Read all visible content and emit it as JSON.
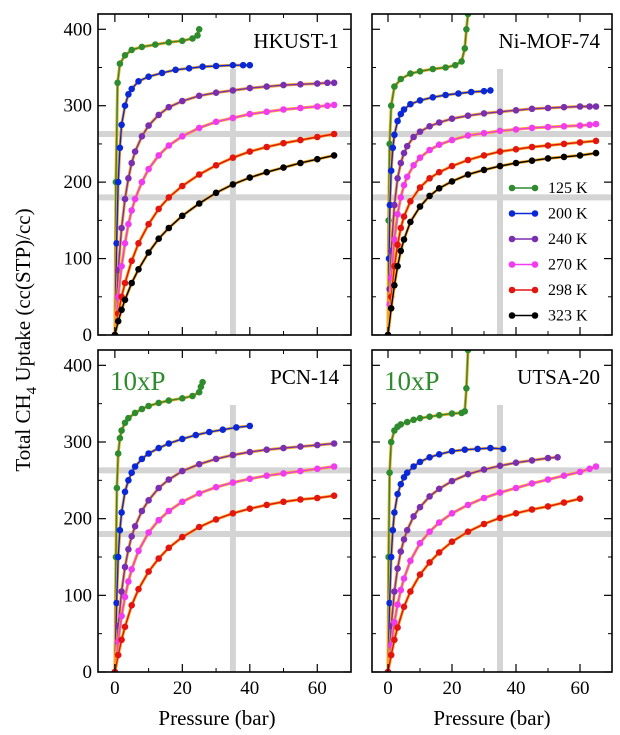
{
  "figure": {
    "ylabel_prefix": "Total CH",
    "ylabel_sub": "4",
    "ylabel_suffix": " Uptake (cc(STP)/cc)",
    "xlabel": "Pressure (bar)"
  },
  "colors": {
    "125 K": "#2e8b2e",
    "200 K": "#0a28d8",
    "240 K": "#7a2fb0",
    "270 K": "#f23af0",
    "298 K": "#e3150f",
    "323 K": "#000000",
    "fit": "#f5a623",
    "reference": "#d4d4d4"
  },
  "legend": [
    "125 K",
    "200 K",
    "240 K",
    "270 K",
    "298 K",
    "323 K"
  ],
  "chart_data": [
    {
      "type": "line",
      "panel": "HKUST-1",
      "multiplier": "",
      "xlim": [
        -5,
        70
      ],
      "ylim": [
        0,
        420
      ],
      "xticks": [
        0,
        20,
        40,
        60
      ],
      "yticks": [
        0,
        100,
        200,
        300,
        400
      ],
      "xticklabels": [
        "",
        "",
        "",
        ""
      ],
      "yticklabels": [
        "0",
        "100",
        "200",
        "300",
        "400"
      ],
      "reference_lines": {
        "x": 35,
        "y": [
          180,
          263
        ]
      },
      "series": [
        {
          "name": "125 K",
          "x": [
            0,
            0.3,
            0.8,
            1.5,
            3,
            5,
            8,
            12,
            16,
            20,
            23,
            24.5,
            25
          ],
          "y": [
            0,
            200,
            330,
            355,
            366,
            373,
            377,
            380,
            383,
            385,
            388,
            392,
            400
          ]
        },
        {
          "name": "200 K",
          "x": [
            0,
            0.5,
            1,
            1.5,
            2,
            3,
            4,
            5,
            7,
            10,
            14,
            18,
            22,
            26,
            30,
            35,
            38,
            40
          ],
          "y": [
            0,
            120,
            200,
            245,
            275,
            300,
            315,
            322,
            332,
            338,
            343,
            347,
            349,
            351,
            352,
            353,
            353,
            353
          ]
        },
        {
          "name": "240 K",
          "x": [
            0,
            1,
            2,
            3,
            4,
            5,
            6,
            8,
            10,
            13,
            16,
            20,
            25,
            30,
            35,
            40,
            45,
            50,
            55,
            60,
            63,
            65
          ],
          "y": [
            0,
            85,
            140,
            178,
            205,
            225,
            240,
            260,
            274,
            288,
            298,
            306,
            313,
            317,
            320,
            323,
            325,
            327,
            328,
            329,
            330,
            330
          ]
        },
        {
          "name": "270 K",
          "x": [
            0,
            1,
            2,
            3,
            4,
            5,
            6,
            8,
            10,
            13,
            16,
            20,
            25,
            30,
            35,
            40,
            45,
            50,
            55,
            60,
            63,
            65
          ],
          "y": [
            0,
            50,
            90,
            120,
            145,
            163,
            178,
            200,
            217,
            235,
            248,
            260,
            271,
            279,
            284,
            289,
            292,
            295,
            297,
            299,
            300,
            301
          ]
        },
        {
          "name": "298 K",
          "x": [
            0,
            1,
            2,
            3,
            5,
            7,
            10,
            13,
            16,
            20,
            25,
            30,
            35,
            40,
            45,
            50,
            55,
            60,
            65
          ],
          "y": [
            0,
            28,
            50,
            68,
            97,
            120,
            145,
            165,
            180,
            195,
            210,
            222,
            232,
            240,
            246,
            251,
            255,
            259,
            263
          ]
        },
        {
          "name": "323 K",
          "x": [
            0,
            1,
            2,
            3,
            5,
            7,
            10,
            13,
            16,
            20,
            25,
            30,
            35,
            40,
            45,
            50,
            55,
            60,
            65
          ],
          "y": [
            0,
            18,
            33,
            46,
            68,
            86,
            108,
            126,
            140,
            156,
            172,
            186,
            197,
            206,
            213,
            219,
            225,
            230,
            235
          ]
        }
      ]
    },
    {
      "type": "line",
      "panel": "Ni-MOF-74",
      "multiplier": "",
      "xlim": [
        -5,
        70
      ],
      "ylim": [
        0,
        420
      ],
      "xticks": [
        0,
        20,
        40,
        60
      ],
      "yticks": [
        0,
        100,
        200,
        300,
        400
      ],
      "xticklabels": [
        "",
        "",
        "",
        ""
      ],
      "yticklabels": [
        "",
        "",
        "",
        "",
        ""
      ],
      "reference_lines": {
        "x": 35,
        "y": [
          180,
          263
        ]
      },
      "series": [
        {
          "name": "125 K",
          "x": [
            0,
            0.2,
            0.5,
            1,
            2,
            4,
            7,
            10,
            14,
            18,
            21,
            23,
            24,
            24.5,
            25
          ],
          "y": [
            0,
            150,
            250,
            300,
            325,
            335,
            342,
            345,
            348,
            350,
            353,
            358,
            375,
            400,
            420
          ]
        },
        {
          "name": "200 K",
          "x": [
            0,
            0.3,
            0.6,
            1,
            1.5,
            2,
            3,
            4,
            5,
            7,
            10,
            14,
            18,
            22,
            26,
            30,
            32
          ],
          "y": [
            0,
            100,
            170,
            215,
            245,
            262,
            280,
            289,
            295,
            302,
            307,
            311,
            314,
            316,
            318,
            319,
            320
          ]
        },
        {
          "name": "240 K",
          "x": [
            0,
            0.5,
            1,
            2,
            3,
            4,
            5,
            6,
            8,
            10,
            13,
            16,
            20,
            25,
            30,
            35,
            40,
            45,
            50,
            55,
            60,
            63,
            65
          ],
          "y": [
            0,
            60,
            110,
            170,
            205,
            225,
            238,
            247,
            259,
            266,
            273,
            278,
            283,
            287,
            290,
            292,
            294,
            296,
            297,
            298,
            299,
            299,
            299
          ]
        },
        {
          "name": "270 K",
          "x": [
            0,
            0.5,
            1,
            2,
            3,
            4,
            5,
            6,
            8,
            10,
            13,
            16,
            20,
            25,
            30,
            35,
            40,
            45,
            50,
            55,
            60,
            63,
            65
          ],
          "y": [
            0,
            40,
            75,
            125,
            158,
            180,
            196,
            207,
            222,
            232,
            242,
            249,
            255,
            261,
            264,
            267,
            269,
            271,
            272,
            273,
            274,
            275,
            276
          ]
        },
        {
          "name": "298 K",
          "x": [
            0,
            1,
            2,
            3,
            4,
            5,
            7,
            10,
            13,
            16,
            20,
            25,
            30,
            35,
            40,
            45,
            50,
            55,
            60,
            65
          ],
          "y": [
            0,
            50,
            90,
            118,
            140,
            155,
            175,
            193,
            205,
            213,
            221,
            229,
            235,
            240,
            243,
            246,
            248,
            250,
            252,
            254
          ]
        },
        {
          "name": "323 K",
          "x": [
            0,
            1,
            2,
            3,
            4,
            5,
            7,
            10,
            13,
            16,
            20,
            25,
            30,
            35,
            40,
            45,
            50,
            55,
            60,
            65
          ],
          "y": [
            0,
            35,
            65,
            90,
            110,
            125,
            148,
            168,
            182,
            192,
            201,
            210,
            216,
            221,
            225,
            228,
            231,
            233,
            235,
            238
          ]
        }
      ]
    },
    {
      "type": "line",
      "panel": "PCN-14",
      "multiplier": "10xP",
      "xlim": [
        -5,
        70
      ],
      "ylim": [
        0,
        420
      ],
      "xticks": [
        0,
        20,
        40,
        60
      ],
      "yticks": [
        0,
        100,
        200,
        300,
        400
      ],
      "xticklabels": [
        "0",
        "20",
        "40",
        "60"
      ],
      "yticklabels": [
        "0",
        "100",
        "200",
        "300",
        "400"
      ],
      "reference_lines": {
        "x": 35,
        "y": [
          180,
          263
        ]
      },
      "series": [
        {
          "name": "125 K",
          "x": [
            0,
            0.3,
            0.6,
            1,
            1.5,
            2,
            3,
            4,
            6,
            8,
            10,
            13,
            16,
            20,
            23,
            25,
            25.5,
            26
          ],
          "y": [
            0,
            150,
            240,
            285,
            305,
            315,
            325,
            331,
            338,
            343,
            347,
            351,
            354,
            357,
            360,
            365,
            372,
            378
          ]
        },
        {
          "name": "200 K",
          "x": [
            0,
            0.5,
            1,
            1.5,
            2,
            3,
            4,
            5,
            6,
            8,
            10,
            13,
            16,
            20,
            24,
            28,
            32,
            36,
            40
          ],
          "y": [
            0,
            90,
            150,
            185,
            208,
            235,
            250,
            260,
            268,
            278,
            285,
            292,
            298,
            304,
            309,
            313,
            316,
            319,
            321
          ]
        },
        {
          "name": "240 K",
          "x": [
            0,
            1,
            2,
            3,
            4,
            5,
            6,
            8,
            10,
            13,
            16,
            20,
            25,
            30,
            35,
            40,
            45,
            50,
            55,
            60,
            65
          ],
          "y": [
            0,
            60,
            105,
            137,
            160,
            177,
            190,
            210,
            224,
            240,
            251,
            262,
            271,
            278,
            283,
            287,
            290,
            292,
            294,
            296,
            298
          ]
        },
        {
          "name": "270 K",
          "x": [
            0,
            1,
            2,
            3,
            4,
            5,
            7,
            10,
            13,
            16,
            20,
            25,
            30,
            35,
            40,
            45,
            50,
            55,
            60,
            65
          ],
          "y": [
            0,
            40,
            73,
            98,
            118,
            134,
            158,
            182,
            198,
            210,
            222,
            233,
            241,
            247,
            252,
            256,
            259,
            262,
            265,
            268
          ]
        },
        {
          "name": "298 K",
          "x": [
            0,
            1,
            2,
            3,
            5,
            7,
            10,
            13,
            16,
            20,
            25,
            30,
            35,
            40,
            45,
            50,
            55,
            60,
            65
          ],
          "y": [
            0,
            22,
            42,
            59,
            87,
            108,
            131,
            148,
            162,
            176,
            189,
            199,
            207,
            213,
            218,
            222,
            225,
            227,
            230
          ]
        }
      ]
    },
    {
      "type": "line",
      "panel": "UTSA-20",
      "multiplier": "10xP",
      "xlim": [
        -5,
        70
      ],
      "ylim": [
        0,
        420
      ],
      "xticks": [
        0,
        20,
        40,
        60
      ],
      "yticks": [
        0,
        100,
        200,
        300,
        400
      ],
      "xticklabels": [
        "0",
        "20",
        "40",
        "60"
      ],
      "yticklabels": [
        "",
        "",
        "",
        "",
        ""
      ],
      "reference_lines": {
        "x": 35,
        "y": [
          180,
          263
        ]
      },
      "series": [
        {
          "name": "125 K",
          "x": [
            0,
            0.2,
            0.5,
            1,
            2,
            3,
            4,
            6,
            8,
            10,
            13,
            16,
            20,
            23,
            24,
            24.5,
            25
          ],
          "y": [
            0,
            150,
            260,
            300,
            315,
            320,
            323,
            326,
            329,
            331,
            333,
            335,
            337,
            338,
            340,
            370,
            420
          ]
        },
        {
          "name": "200 K",
          "x": [
            0,
            0.5,
            1,
            1.5,
            2,
            3,
            4,
            5,
            6,
            8,
            10,
            13,
            16,
            20,
            24,
            28,
            32,
            36
          ],
          "y": [
            0,
            90,
            150,
            185,
            208,
            232,
            245,
            254,
            260,
            268,
            274,
            280,
            284,
            288,
            290,
            291,
            292,
            291
          ]
        },
        {
          "name": "240 K",
          "x": [
            0,
            1,
            2,
            3,
            4,
            5,
            6,
            8,
            10,
            13,
            16,
            20,
            25,
            30,
            35,
            40,
            45,
            50,
            53
          ],
          "y": [
            0,
            60,
            105,
            135,
            157,
            173,
            185,
            203,
            215,
            229,
            239,
            249,
            258,
            264,
            269,
            273,
            276,
            279,
            280
          ]
        },
        {
          "name": "270 K",
          "x": [
            0,
            1,
            2,
            3,
            4,
            5,
            7,
            10,
            13,
            16,
            20,
            25,
            30,
            35,
            40,
            45,
            50,
            55,
            60,
            63,
            65
          ],
          "y": [
            0,
            35,
            65,
            88,
            107,
            122,
            145,
            168,
            183,
            195,
            207,
            218,
            227,
            234,
            240,
            246,
            251,
            256,
            261,
            265,
            268
          ]
        },
        {
          "name": "298 K",
          "x": [
            0,
            1,
            2,
            3,
            5,
            7,
            10,
            13,
            16,
            20,
            25,
            30,
            35,
            40,
            45,
            50,
            55,
            60
          ],
          "y": [
            0,
            22,
            42,
            58,
            85,
            105,
            127,
            143,
            156,
            170,
            183,
            193,
            201,
            207,
            212,
            216,
            221,
            226
          ]
        }
      ]
    }
  ]
}
